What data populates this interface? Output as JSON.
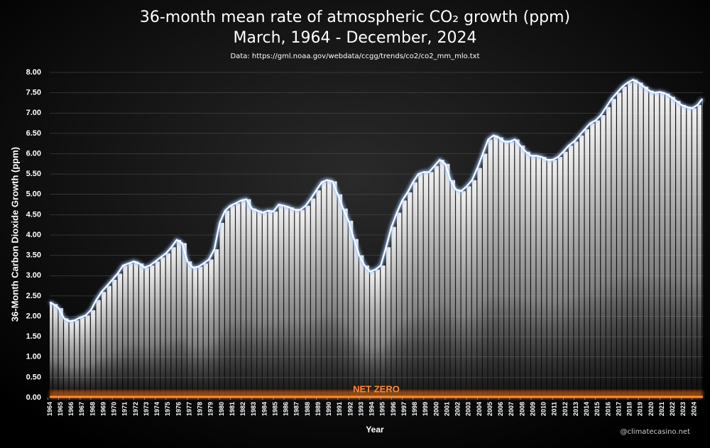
{
  "chart_data": {
    "type": "bar",
    "title": "36-month mean rate of atmospheric CO₂ growth (ppm)",
    "subtitle": "March, 1964 - December, 2024",
    "source": "Data: https://gml.noaa.gov/webdata/ccgg/trends/co2/co2_mm_mlo.txt",
    "x_label": "Year",
    "y_label": "36-Month Carbon Dioxide Growth (ppm)",
    "annotation": "NET ZERO",
    "watermark": "@climatecasino.net",
    "color": "#ffffff",
    "grid": true,
    "x": [
      1964.17,
      1964.5,
      1965,
      1965.5,
      1966,
      1966.5,
      1967,
      1967.5,
      1968,
      1968.5,
      1969,
      1969.5,
      1970,
      1970.5,
      1971,
      1971.5,
      1972,
      1972.5,
      1973,
      1973.5,
      1974,
      1974.5,
      1975,
      1975.5,
      1976,
      1976.5,
      1977,
      1977.5,
      1978,
      1978.5,
      1979,
      1979.5,
      1980,
      1980.5,
      1981,
      1981.5,
      1982,
      1982.5,
      1983,
      1983.5,
      1984,
      1984.5,
      1985,
      1985.5,
      1986,
      1986.5,
      1987,
      1987.5,
      1988,
      1988.5,
      1989,
      1989.5,
      1990,
      1990.5,
      1991,
      1991.5,
      1992,
      1992.5,
      1993,
      1993.5,
      1994,
      1994.5,
      1995,
      1995.5,
      1996,
      1996.5,
      1997,
      1997.5,
      1998,
      1998.5,
      1999,
      1999.5,
      2000,
      2000.5,
      2001,
      2001.5,
      2002,
      2002.5,
      2003,
      2003.5,
      2004,
      2004.5,
      2005,
      2005.5,
      2006,
      2006.5,
      2007,
      2007.5,
      2008,
      2008.5,
      2009,
      2009.5,
      2010,
      2010.5,
      2011,
      2011.5,
      2012,
      2012.5,
      2013,
      2013.5,
      2014,
      2014.5,
      2015,
      2015.5,
      2016,
      2016.5,
      2017,
      2017.5,
      2018,
      2018.5,
      2019,
      2019.5,
      2020,
      2020.5,
      2021,
      2021.5,
      2022,
      2022.5,
      2023,
      2023.5,
      2024,
      2024.5,
      2024.95
    ],
    "values": [
      2.35,
      2.3,
      2.2,
      1.95,
      1.88,
      1.9,
      1.97,
      2.02,
      2.15,
      2.4,
      2.6,
      2.75,
      2.9,
      3.05,
      3.25,
      3.3,
      3.35,
      3.3,
      3.2,
      3.25,
      3.35,
      3.45,
      3.55,
      3.7,
      3.88,
      3.8,
      3.35,
      3.2,
      3.22,
      3.3,
      3.4,
      3.65,
      4.3,
      4.6,
      4.72,
      4.78,
      4.85,
      4.88,
      4.65,
      4.6,
      4.55,
      4.6,
      4.58,
      4.75,
      4.72,
      4.68,
      4.62,
      4.62,
      4.72,
      4.9,
      5.1,
      5.3,
      5.35,
      5.32,
      5.0,
      4.65,
      4.35,
      3.9,
      3.5,
      3.25,
      3.1,
      3.15,
      3.25,
      3.7,
      4.2,
      4.55,
      4.85,
      5.05,
      5.3,
      5.5,
      5.55,
      5.55,
      5.7,
      5.85,
      5.75,
      5.35,
      5.12,
      5.08,
      5.2,
      5.35,
      5.65,
      6.0,
      6.35,
      6.45,
      6.4,
      6.3,
      6.3,
      6.35,
      6.2,
      6.05,
      5.95,
      5.95,
      5.92,
      5.85,
      5.85,
      5.92,
      6.05,
      6.2,
      6.3,
      6.45,
      6.6,
      6.75,
      6.82,
      6.95,
      7.15,
      7.35,
      7.5,
      7.65,
      7.75,
      7.82,
      7.75,
      7.65,
      7.55,
      7.5,
      7.52,
      7.48,
      7.4,
      7.3,
      7.2,
      7.15,
      7.12,
      7.2,
      7.35
    ],
    "xlim": [
      1964.17,
      2025
    ],
    "xticks": [
      1964,
      1965,
      1966,
      1967,
      1968,
      1969,
      1970,
      1971,
      1972,
      1973,
      1974,
      1975,
      1976,
      1977,
      1978,
      1979,
      1980,
      1981,
      1982,
      1983,
      1984,
      1985,
      1986,
      1987,
      1988,
      1989,
      1990,
      1991,
      1992,
      1993,
      1994,
      1995,
      1996,
      1997,
      1998,
      1999,
      2000,
      2001,
      2002,
      2003,
      2004,
      2005,
      2006,
      2007,
      2008,
      2009,
      2010,
      2011,
      2012,
      2013,
      2014,
      2015,
      2016,
      2017,
      2018,
      2019,
      2020,
      2021,
      2022,
      2023,
      2024
    ],
    "ylim": [
      0,
      8
    ],
    "yticks": [
      {
        "value": 0,
        "label": "0.00"
      },
      {
        "value": 0.5,
        "label": "0.50"
      },
      {
        "value": 1,
        "label": "1.00"
      },
      {
        "value": 1.5,
        "label": "1.50"
      },
      {
        "value": 2,
        "label": "2.00"
      },
      {
        "value": 2.5,
        "label": "2.50"
      },
      {
        "value": 3,
        "label": "3.00"
      },
      {
        "value": 3.5,
        "label": "3.50"
      },
      {
        "value": 4,
        "label": "4.00"
      },
      {
        "value": 4.5,
        "label": "4.50"
      },
      {
        "value": 5,
        "label": "5.00"
      },
      {
        "value": 5.5,
        "label": "5.50"
      },
      {
        "value": 6,
        "label": "6.00"
      },
      {
        "value": 6.5,
        "label": "6.50"
      },
      {
        "value": 7,
        "label": "7.00"
      },
      {
        "value": 7.5,
        "label": "7.50"
      },
      {
        "value": 8,
        "label": "8.00"
      }
    ]
  }
}
